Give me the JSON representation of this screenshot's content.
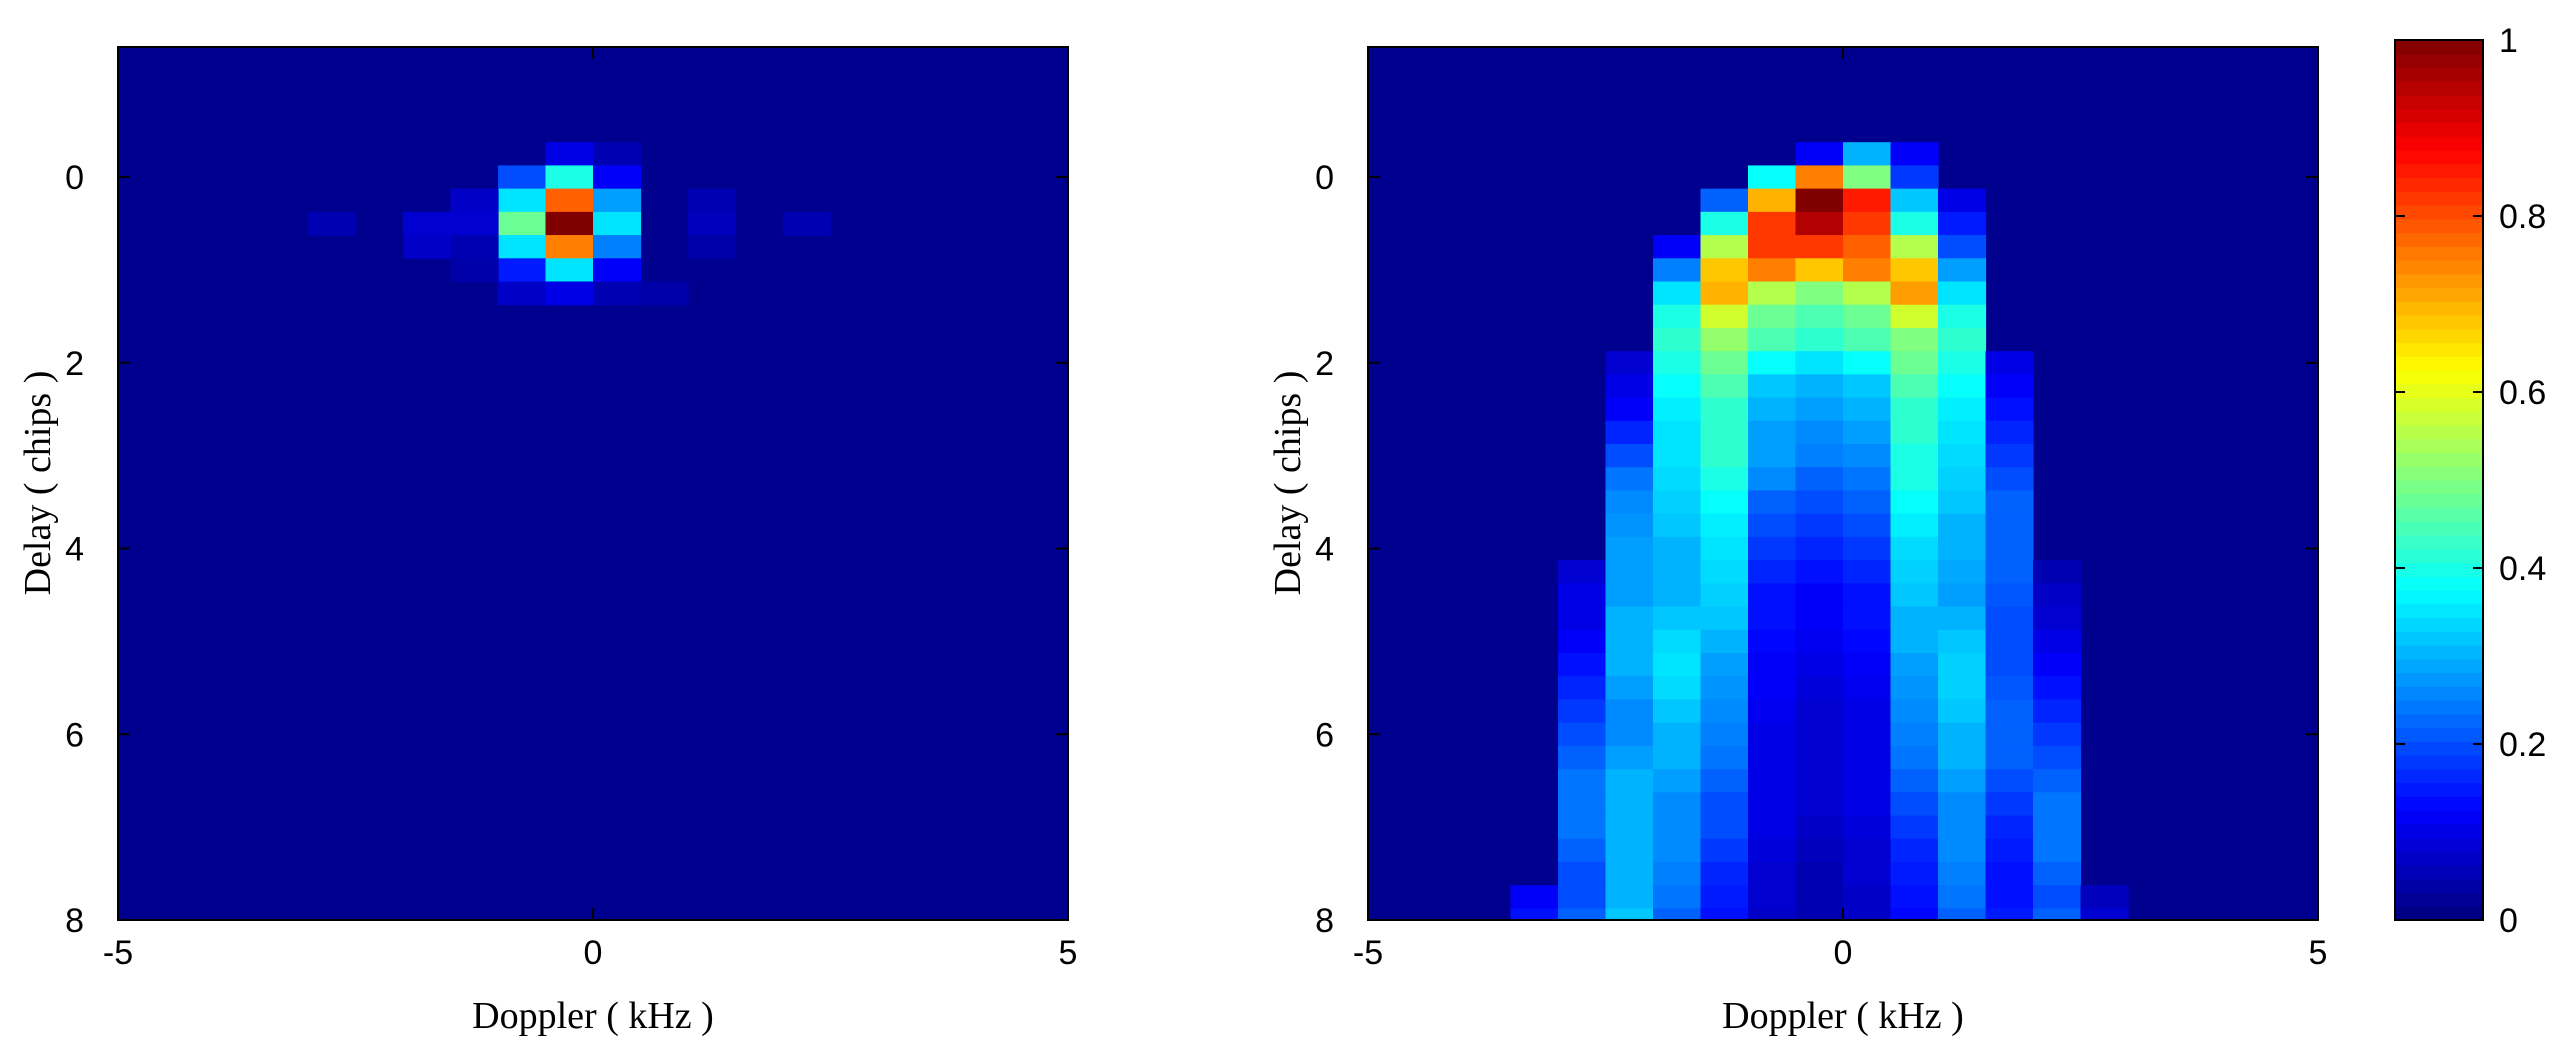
{
  "chart_data": [
    {
      "type": "heatmap",
      "title": "",
      "xlabel": "Doppler ( kHz )",
      "ylabel": "Delay ( chips )",
      "xlim": [
        -5,
        5
      ],
      "ylim": [
        -1.4,
        8
      ],
      "y_reversed": true,
      "x_ticks": [
        -5,
        0,
        5
      ],
      "y_ticks": [
        0,
        2,
        4,
        6,
        8
      ],
      "colormap": "jet",
      "clim": [
        0,
        1
      ],
      "background_value": 0,
      "cell_width_khz": 0.5,
      "cell_height_chips": 0.25,
      "cells": [
        [
          -0.25,
          -0.25,
          0.1
        ],
        [
          0.25,
          -0.25,
          0.05
        ],
        [
          -0.75,
          0,
          0.2
        ],
        [
          -0.25,
          0,
          0.4
        ],
        [
          0.25,
          0,
          0.12
        ],
        [
          -0.75,
          0.25,
          0.35
        ],
        [
          -0.25,
          0.25,
          0.78
        ],
        [
          0.25,
          0.25,
          0.28
        ],
        [
          -1.25,
          0.25,
          0.07
        ],
        [
          1.25,
          0.25,
          0.05
        ],
        [
          -0.75,
          0.5,
          0.48
        ],
        [
          -0.25,
          0.5,
          1.0
        ],
        [
          0.25,
          0.5,
          0.35
        ],
        [
          -2.75,
          0.5,
          0.05
        ],
        [
          -1.75,
          0.5,
          0.08
        ],
        [
          -1.25,
          0.5,
          0.08
        ],
        [
          1.25,
          0.5,
          0.06
        ],
        [
          2.25,
          0.5,
          0.05
        ],
        [
          -0.75,
          0.75,
          0.35
        ],
        [
          -0.25,
          0.75,
          0.75
        ],
        [
          0.25,
          0.75,
          0.25
        ],
        [
          -1.75,
          0.75,
          0.07
        ],
        [
          -1.25,
          0.75,
          0.05
        ],
        [
          1.25,
          0.75,
          0.04
        ],
        [
          -0.75,
          1.0,
          0.15
        ],
        [
          -0.25,
          1.0,
          0.35
        ],
        [
          0.25,
          1.0,
          0.12
        ],
        [
          -1.25,
          1.0,
          0.04
        ],
        [
          -0.75,
          1.25,
          0.07
        ],
        [
          -0.25,
          1.25,
          0.1
        ],
        [
          0.25,
          1.25,
          0.05
        ],
        [
          0.75,
          1.25,
          0.04
        ]
      ]
    },
    {
      "type": "heatmap",
      "title": "",
      "xlabel": "Doppler ( kHz )",
      "ylabel": "Delay ( chips )",
      "xlim": [
        -5,
        5
      ],
      "ylim": [
        -1.4,
        8
      ],
      "y_reversed": true,
      "x_ticks": [
        -5,
        0,
        5
      ],
      "y_ticks": [
        0,
        2,
        4,
        6,
        8
      ],
      "colormap": "jet",
      "clim": [
        0,
        1
      ],
      "background_value": 0,
      "cell_width_khz": 0.5,
      "cell_height_chips": 0.25,
      "grid_x_centers": [
        -3.25,
        -2.75,
        -2.25,
        -1.75,
        -1.25,
        -0.75,
        -0.25,
        0.25,
        0.75,
        1.25,
        1.75,
        2.25,
        2.75
      ],
      "grid_first_row_center": -0.25,
      "grid_values": [
        [
          0,
          0,
          0,
          0,
          0,
          0,
          0.12,
          0.3,
          0.12,
          0,
          0,
          0,
          0
        ],
        [
          0,
          0,
          0,
          0,
          0,
          0.38,
          0.75,
          0.5,
          0.18,
          0,
          0,
          0,
          0
        ],
        [
          0,
          0,
          0,
          0,
          0.22,
          0.7,
          1.0,
          0.85,
          0.32,
          0.1,
          0,
          0,
          0
        ],
        [
          0,
          0,
          0,
          0,
          0.4,
          0.82,
          0.95,
          0.82,
          0.4,
          0.15,
          0,
          0,
          0
        ],
        [
          0,
          0,
          0,
          0.12,
          0.55,
          0.82,
          0.82,
          0.78,
          0.55,
          0.2,
          0,
          0,
          0
        ],
        [
          0,
          0,
          0,
          0.25,
          0.68,
          0.75,
          0.68,
          0.75,
          0.68,
          0.28,
          0,
          0,
          0
        ],
        [
          0,
          0,
          0,
          0.35,
          0.7,
          0.55,
          0.5,
          0.55,
          0.72,
          0.35,
          0,
          0,
          0
        ],
        [
          0,
          0,
          0,
          0.4,
          0.58,
          0.48,
          0.45,
          0.48,
          0.58,
          0.4,
          0,
          0,
          0
        ],
        [
          0,
          0,
          0,
          0.42,
          0.52,
          0.45,
          0.42,
          0.45,
          0.5,
          0.42,
          0,
          0,
          0
        ],
        [
          0,
          0,
          0.08,
          0.4,
          0.48,
          0.38,
          0.35,
          0.38,
          0.48,
          0.4,
          0.1,
          0,
          0
        ],
        [
          0,
          0,
          0.1,
          0.38,
          0.45,
          0.32,
          0.3,
          0.32,
          0.45,
          0.38,
          0.12,
          0,
          0
        ],
        [
          0,
          0,
          0.12,
          0.36,
          0.42,
          0.3,
          0.28,
          0.3,
          0.42,
          0.36,
          0.14,
          0,
          0
        ],
        [
          0,
          0,
          0.16,
          0.35,
          0.42,
          0.28,
          0.26,
          0.28,
          0.42,
          0.35,
          0.16,
          0,
          0
        ],
        [
          0,
          0,
          0.2,
          0.35,
          0.42,
          0.28,
          0.25,
          0.26,
          0.4,
          0.34,
          0.18,
          0,
          0
        ],
        [
          0,
          0,
          0.24,
          0.34,
          0.4,
          0.26,
          0.22,
          0.24,
          0.4,
          0.33,
          0.2,
          0,
          0
        ],
        [
          0,
          0,
          0.26,
          0.33,
          0.38,
          0.22,
          0.2,
          0.22,
          0.38,
          0.32,
          0.22,
          0,
          0
        ],
        [
          0,
          0,
          0.27,
          0.32,
          0.36,
          0.2,
          0.18,
          0.2,
          0.36,
          0.3,
          0.22,
          0,
          0
        ],
        [
          0,
          0,
          0.28,
          0.3,
          0.35,
          0.18,
          0.16,
          0.18,
          0.34,
          0.3,
          0.22,
          0,
          0
        ],
        [
          0,
          0.08,
          0.28,
          0.3,
          0.34,
          0.16,
          0.14,
          0.16,
          0.33,
          0.29,
          0.22,
          0.05,
          0
        ],
        [
          0,
          0.1,
          0.28,
          0.3,
          0.33,
          0.14,
          0.12,
          0.14,
          0.32,
          0.28,
          0.21,
          0.07,
          0
        ],
        [
          0,
          0.1,
          0.3,
          0.32,
          0.32,
          0.14,
          0.12,
          0.14,
          0.3,
          0.3,
          0.2,
          0.08,
          0
        ],
        [
          0,
          0.12,
          0.3,
          0.34,
          0.3,
          0.13,
          0.11,
          0.13,
          0.3,
          0.32,
          0.2,
          0.1,
          0
        ],
        [
          0,
          0.14,
          0.3,
          0.35,
          0.28,
          0.12,
          0.1,
          0.12,
          0.28,
          0.33,
          0.2,
          0.12,
          0
        ],
        [
          0,
          0.16,
          0.28,
          0.34,
          0.27,
          0.12,
          0.09,
          0.11,
          0.27,
          0.33,
          0.21,
          0.14,
          0
        ],
        [
          0,
          0.18,
          0.26,
          0.32,
          0.26,
          0.11,
          0.08,
          0.1,
          0.26,
          0.32,
          0.22,
          0.16,
          0
        ],
        [
          0,
          0.2,
          0.26,
          0.3,
          0.25,
          0.1,
          0.08,
          0.1,
          0.25,
          0.3,
          0.22,
          0.18,
          0
        ],
        [
          0,
          0.22,
          0.28,
          0.3,
          0.24,
          0.1,
          0.08,
          0.1,
          0.24,
          0.3,
          0.22,
          0.2,
          0
        ],
        [
          0,
          0.24,
          0.3,
          0.28,
          0.22,
          0.1,
          0.08,
          0.1,
          0.22,
          0.28,
          0.2,
          0.22,
          0
        ],
        [
          0,
          0.24,
          0.3,
          0.26,
          0.2,
          0.1,
          0.08,
          0.1,
          0.2,
          0.26,
          0.18,
          0.24,
          0
        ],
        [
          0,
          0.24,
          0.3,
          0.26,
          0.2,
          0.1,
          0.07,
          0.09,
          0.18,
          0.26,
          0.16,
          0.24,
          0
        ],
        [
          0,
          0.22,
          0.3,
          0.26,
          0.18,
          0.09,
          0.06,
          0.08,
          0.16,
          0.26,
          0.15,
          0.24,
          0
        ],
        [
          0,
          0.2,
          0.3,
          0.25,
          0.16,
          0.08,
          0.05,
          0.08,
          0.15,
          0.25,
          0.14,
          0.22,
          0
        ],
        [
          0.12,
          0.2,
          0.3,
          0.24,
          0.15,
          0.08,
          0.05,
          0.07,
          0.14,
          0.24,
          0.14,
          0.2,
          0.06
        ],
        [
          0.14,
          0.22,
          0.32,
          0.22,
          0.14,
          0.07,
          0.05,
          0.07,
          0.13,
          0.22,
          0.15,
          0.22,
          0.08
        ],
        [
          0.15,
          0.24,
          0.34,
          0.2,
          0.13,
          0.07,
          0.05,
          0.07,
          0.12,
          0.2,
          0.15,
          0.24,
          0.1
        ]
      ]
    }
  ],
  "colorbar": {
    "ticks": [
      0,
      0.2,
      0.4,
      0.6,
      0.8,
      1
    ],
    "tick_labels": [
      "0",
      "0.2",
      "0.4",
      "0.6",
      "0.8",
      "1"
    ],
    "range": [
      0,
      1
    ]
  }
}
